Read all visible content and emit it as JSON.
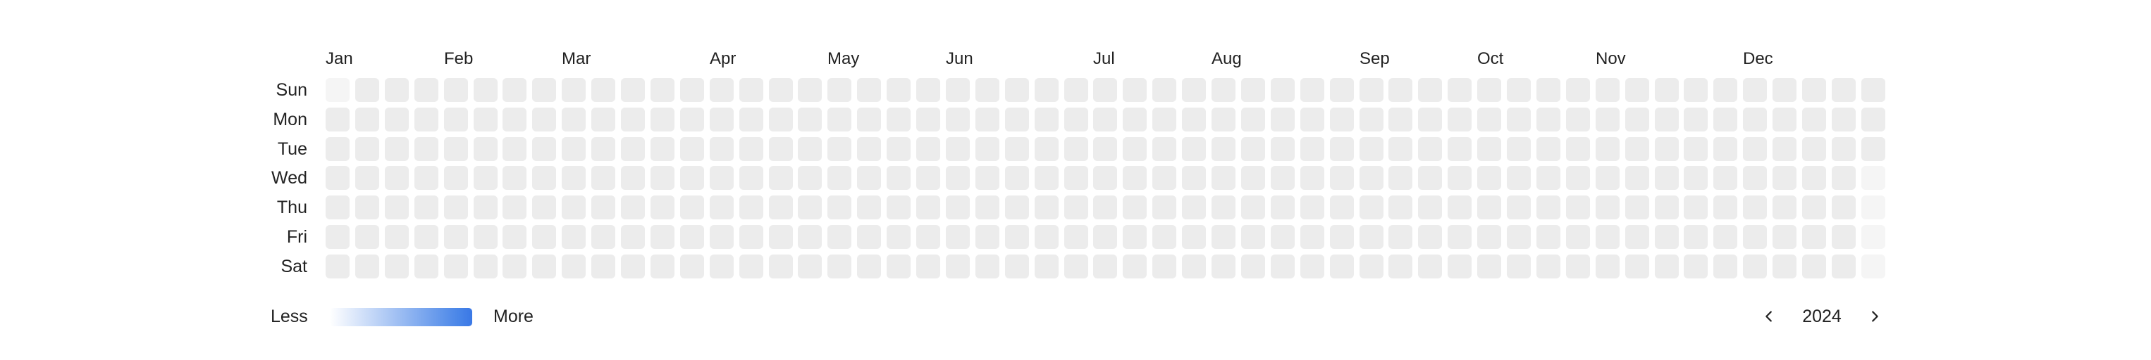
{
  "heatmap": {
    "months": [
      "Jan",
      "Feb",
      "Mar",
      "Apr",
      "May",
      "Jun",
      "Jul",
      "Aug",
      "Sep",
      "Oct",
      "Nov",
      "Dec"
    ],
    "month_start_week": [
      0,
      4,
      8,
      13,
      17,
      21,
      26,
      30,
      35,
      39,
      43,
      48
    ],
    "days": [
      "Sun",
      "Mon",
      "Tue",
      "Wed",
      "Thu",
      "Fri",
      "Sat"
    ],
    "weeks": 53,
    "year_start_weekday": 1,
    "year_days": 366,
    "values": "all empty",
    "empty_color": "#ececec",
    "outside_color": "#f5f5f5"
  },
  "legend": {
    "less_label": "Less",
    "more_label": "More",
    "gradient_start": "#ffffff",
    "gradient_end": "#3a78e6"
  },
  "year_nav": {
    "year": "2024",
    "prev_icon": "chevron-left-icon",
    "next_icon": "chevron-right-icon"
  }
}
